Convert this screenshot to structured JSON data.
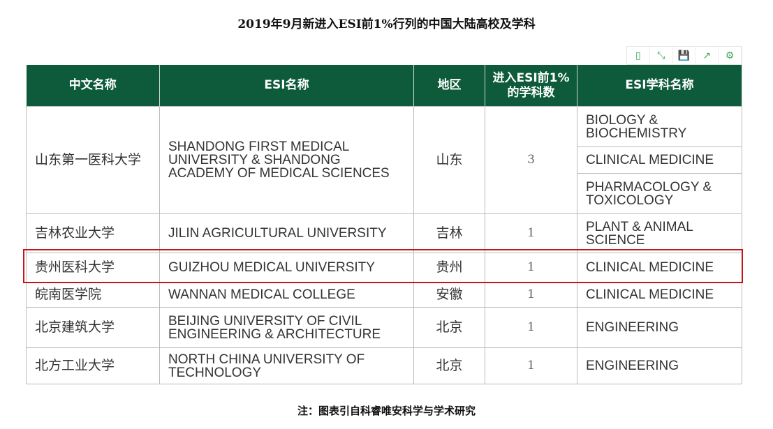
{
  "title": "2019年9月新进入ESI前1%行列的中国大陆高校及学科",
  "toolbar": {
    "icons": [
      "tablet-icon",
      "fullscreen-icon",
      "save-icon",
      "share-icon",
      "gear-icon"
    ],
    "glyphs": [
      "▯",
      "⤡",
      "💾",
      "↗",
      "⚙"
    ]
  },
  "headers": [
    "中文名称",
    "ESI名称",
    "地区",
    "进入ESI前1%的学科数",
    "ESI学科名称"
  ],
  "rows": [
    {
      "cn": "山东第一医科大学",
      "esi": "SHANDONG FIRST MEDICAL UNIVERSITY & SHANDONG ACADEMY OF MEDICAL SCIENCES",
      "region": "山东",
      "count": "3",
      "subjects": [
        "BIOLOGY & BIOCHEMISTRY",
        "CLINICAL MEDICINE",
        "PHARMACOLOGY & TOXICOLOGY"
      ]
    },
    {
      "cn": "吉林农业大学",
      "esi": "JILIN AGRICULTURAL UNIVERSITY",
      "region": "吉林",
      "count": "1",
      "subjects": [
        "PLANT & ANIMAL SCIENCE"
      ]
    },
    {
      "cn": "贵州医科大学",
      "esi": "GUIZHOU MEDICAL UNIVERSITY",
      "region": "贵州",
      "count": "1",
      "subjects": [
        "CLINICAL MEDICINE"
      ]
    },
    {
      "cn": "皖南医学院",
      "esi": "WANNAN MEDICAL COLLEGE",
      "region": "安徽",
      "count": "1",
      "subjects": [
        "CLINICAL MEDICINE"
      ]
    },
    {
      "cn": "北京建筑大学",
      "esi": "BEIJING UNIVERSITY OF CIVIL ENGINEERING & ARCHITECTURE",
      "region": "北京",
      "count": "1",
      "subjects": [
        "ENGINEERING"
      ]
    },
    {
      "cn": "北方工业大学",
      "esi": "NORTH CHINA UNIVERSITY OF TECHNOLOGY",
      "region": "北京",
      "count": "1",
      "subjects": [
        "ENGINEERING"
      ]
    }
  ],
  "highlight_color": "#c0161c",
  "header_color": "#0d5b3b",
  "note": "注：图表引自科睿唯安科学与学术研究"
}
